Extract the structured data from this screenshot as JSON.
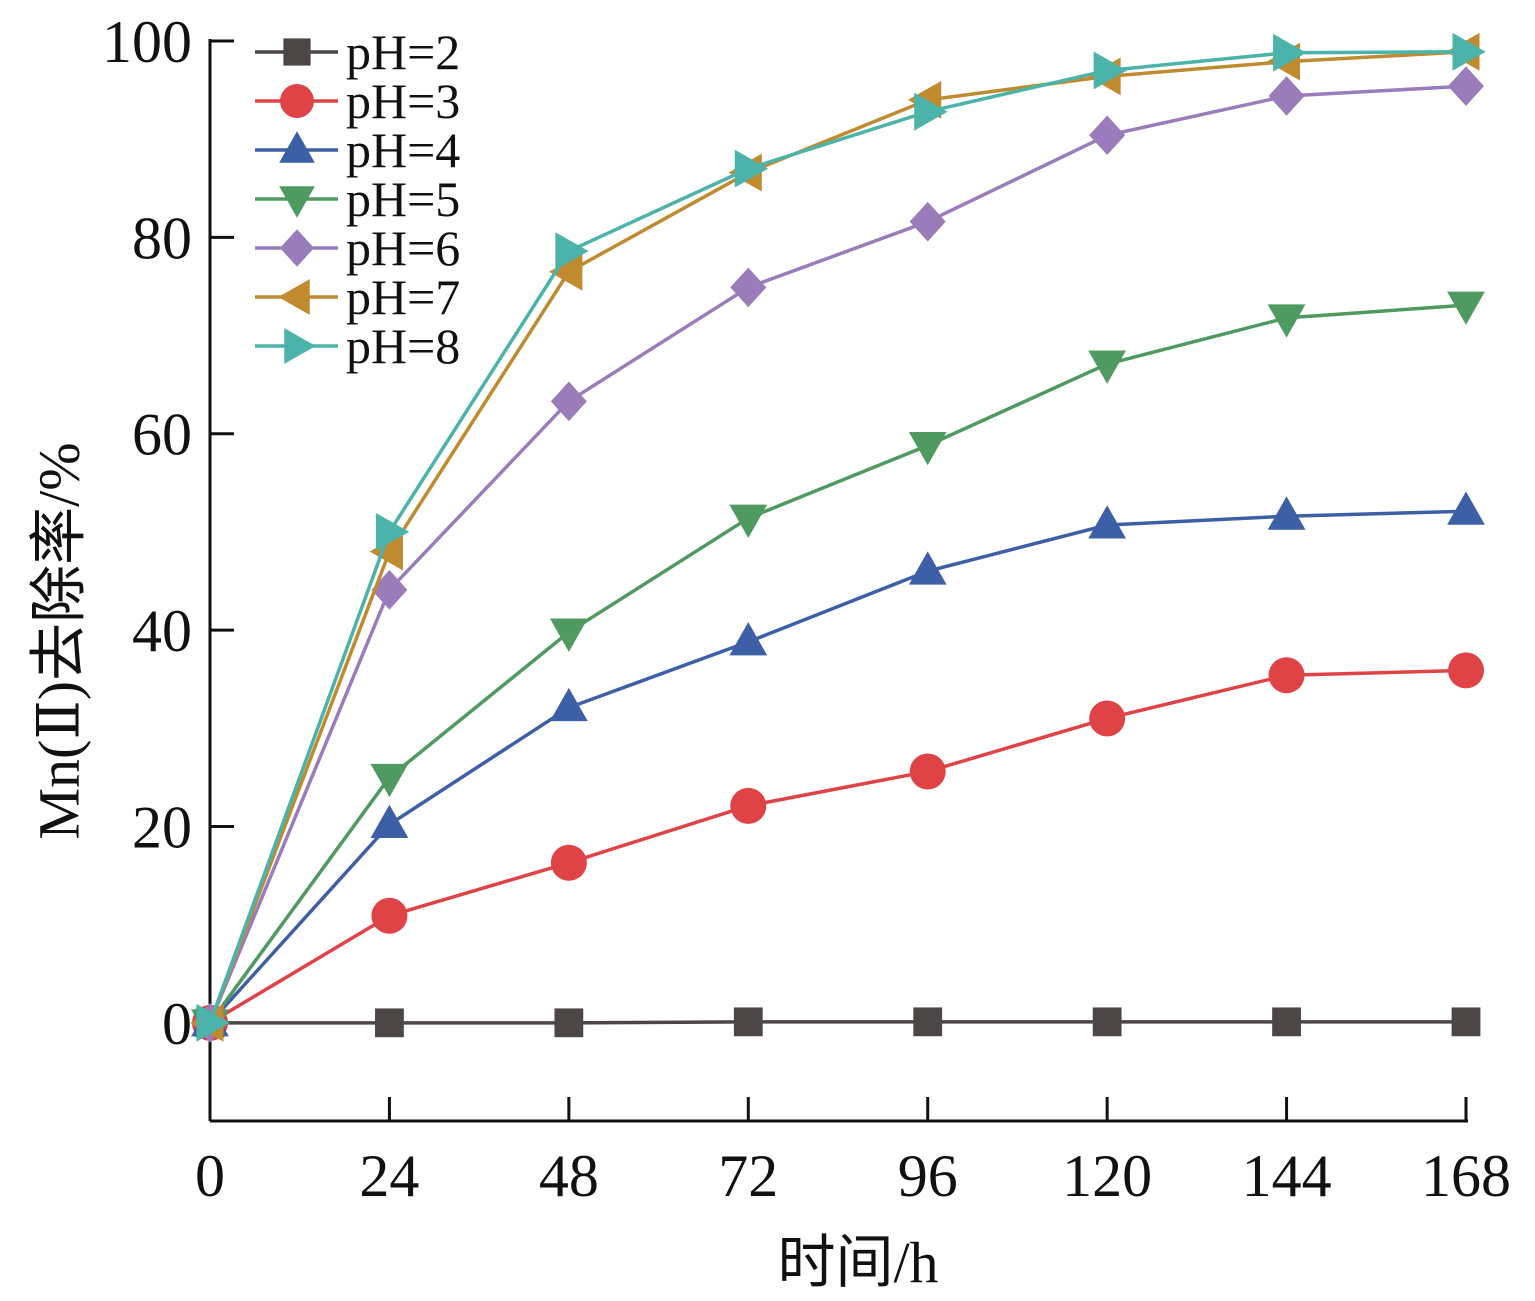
{
  "chart_data": {
    "type": "line",
    "title": "",
    "xlabel": "时间/h",
    "ylabel": "Mn(Ⅱ)去除率/%",
    "x": [
      0,
      24,
      48,
      72,
      96,
      120,
      144,
      168
    ],
    "xticks": [
      0,
      24,
      48,
      72,
      96,
      120,
      144,
      168
    ],
    "yticks": [
      0,
      20,
      40,
      60,
      80,
      100
    ],
    "xlim": [
      0,
      168
    ],
    "ylim": [
      -10,
      100
    ],
    "grid": false,
    "legend_position": "top-left",
    "series": [
      {
        "name": "pH=2",
        "color": "#4d4646",
        "marker": "square",
        "values": [
          0,
          0,
          0,
          0.1,
          0.1,
          0.1,
          0.1,
          0.1
        ]
      },
      {
        "name": "pH=3",
        "color": "#e04346",
        "marker": "circle",
        "values": [
          0,
          10.9,
          16.3,
          22.1,
          25.6,
          31.0,
          35.4,
          35.9
        ]
      },
      {
        "name": "pH=4",
        "color": "#3d5fa5",
        "marker": "triangle-up",
        "values": [
          0,
          20.2,
          32.1,
          38.8,
          46.0,
          50.7,
          51.6,
          52.1
        ]
      },
      {
        "name": "pH=5",
        "color": "#4f9a60",
        "marker": "triangle-down",
        "values": [
          0,
          25.0,
          39.8,
          51.4,
          58.8,
          67.1,
          71.8,
          73.1
        ]
      },
      {
        "name": "pH=6",
        "color": "#9a7cbb",
        "marker": "diamond",
        "values": [
          0,
          44.1,
          63.3,
          74.9,
          81.6,
          90.4,
          94.4,
          95.4
        ]
      },
      {
        "name": "pH=7",
        "color": "#c08a2f",
        "marker": "triangle-left",
        "values": [
          0,
          48.0,
          76.5,
          86.6,
          94.0,
          96.4,
          97.9,
          98.9
        ]
      },
      {
        "name": "pH=8",
        "color": "#4bb3aa",
        "marker": "triangle-right",
        "values": [
          0,
          50.0,
          78.6,
          87.0,
          92.8,
          97.0,
          98.8,
          98.9
        ]
      }
    ]
  }
}
